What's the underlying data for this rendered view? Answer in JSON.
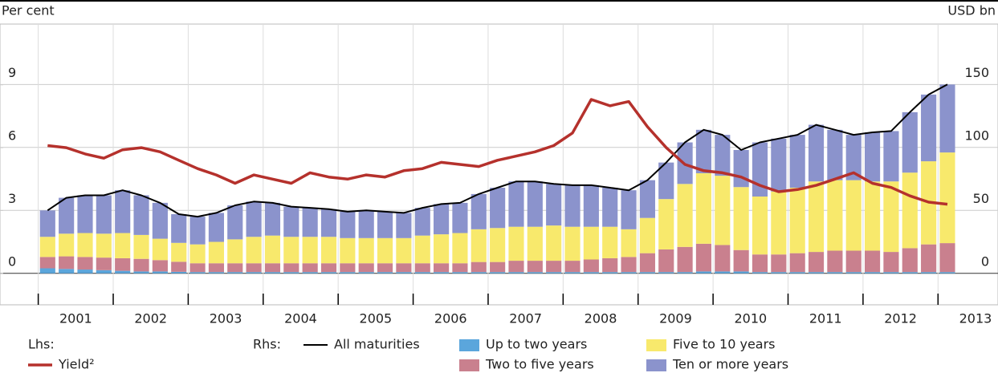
{
  "chart_data": {
    "type": "bar",
    "stacked": true,
    "left_unit": "Per cent",
    "right_unit": "USD bn",
    "lhs_label": "Lhs:",
    "rhs_label": "Rhs:",
    "x": [
      2001.125,
      2001.375,
      2001.625,
      2001.875,
      2002.125,
      2002.375,
      2002.625,
      2002.875,
      2003.125,
      2003.375,
      2003.625,
      2003.875,
      2004.125,
      2004.375,
      2004.625,
      2004.875,
      2005.125,
      2005.375,
      2005.625,
      2005.875,
      2006.125,
      2006.375,
      2006.625,
      2006.875,
      2007.125,
      2007.375,
      2007.625,
      2007.875,
      2008.125,
      2008.375,
      2008.625,
      2008.875,
      2009.125,
      2009.375,
      2009.625,
      2009.875,
      2010.125,
      2010.375,
      2010.625,
      2010.875,
      2011.125,
      2011.375,
      2011.625,
      2011.875,
      2012.125,
      2012.375,
      2012.625,
      2012.875,
      2013.125
    ],
    "xlim": [
      2000.49,
      2013.8
    ],
    "xticks": [
      2001,
      2002,
      2003,
      2004,
      2005,
      2006,
      2007,
      2008,
      2009,
      2010,
      2011,
      2012,
      2013
    ],
    "ylim": [
      -1.5,
      11.9
    ],
    "yticks": [
      0,
      3,
      6,
      9
    ],
    "y2lim": [
      -25,
      198
    ],
    "y2ticks": [
      0,
      50,
      100,
      150
    ],
    "grid": true,
    "series": [
      {
        "name": "All maturities",
        "type": "line",
        "axis": "y2",
        "color": "#000000",
        "values": [
          50,
          60,
          62,
          62,
          66,
          62,
          56,
          47,
          45,
          48,
          54,
          57,
          56,
          53,
          52,
          51,
          49,
          50,
          49,
          48,
          52,
          55,
          56,
          63,
          68,
          73,
          73,
          71,
          70,
          70,
          68,
          66,
          74,
          88,
          104,
          114,
          110,
          98,
          104,
          107,
          110,
          118,
          114,
          110,
          112,
          113,
          128,
          142,
          150
        ]
      },
      {
        "name": "Up to two years",
        "axis": "y2",
        "color": "#5ba6dc",
        "values": [
          4,
          3.5,
          3,
          2.5,
          2,
          1.5,
          1.5,
          1.2,
          1,
          1,
          1,
          1,
          1,
          1,
          1,
          1,
          1,
          1,
          1,
          1,
          1,
          1,
          1,
          1,
          1,
          1,
          1,
          1,
          1,
          1,
          1,
          1,
          1,
          1,
          1,
          1.5,
          1.5,
          1.5,
          1,
          1,
          1,
          1,
          1,
          1,
          1,
          1,
          1,
          1,
          1
        ]
      },
      {
        "name": "Two to five years",
        "axis": "y2",
        "color": "#c9808e",
        "values": [
          9,
          10,
          10,
          10,
          10,
          10,
          9,
          8,
          7,
          7,
          7,
          7,
          7,
          7,
          7,
          7,
          7,
          7,
          7,
          7,
          7,
          7,
          7,
          8,
          8,
          9,
          9,
          9,
          9,
          10,
          11,
          12,
          15,
          18,
          20,
          22,
          21,
          17,
          14,
          14,
          15,
          16,
          17,
          17,
          17,
          16,
          19,
          22,
          23
        ]
      },
      {
        "name": "Five to 10 years",
        "axis": "y2",
        "color": "#f8e96c",
        "values": [
          16,
          18,
          19,
          19,
          20,
          19,
          17,
          15,
          15,
          17,
          19,
          21,
          22,
          21,
          21,
          21,
          20,
          20,
          20,
          20,
          22,
          23,
          24,
          26,
          27,
          27,
          27,
          28,
          27,
          26,
          25,
          22,
          28,
          40,
          50,
          56,
          55,
          50,
          46,
          50,
          52,
          56,
          56,
          56,
          55,
          56,
          60,
          66,
          72
        ]
      },
      {
        "name": "Ten or more years",
        "axis": "y2",
        "color": "#8b93cc",
        "values": [
          21,
          28.5,
          30,
          30.5,
          34,
          31.5,
          28.5,
          22.8,
          22,
          23,
          27,
          28,
          26,
          24,
          23,
          22,
          21,
          22,
          21,
          20,
          22,
          24,
          24,
          28,
          32,
          36,
          36,
          33,
          33,
          33,
          31,
          31,
          30,
          29,
          33,
          34.5,
          32.5,
          29.5,
          43,
          42,
          42,
          45,
          40,
          36,
          39,
          40,
          48,
          53,
          54
        ]
      },
      {
        "name": "Yield²",
        "type": "line",
        "axis": "y",
        "color": "#b5312c",
        "values": [
          6.1,
          6.0,
          5.7,
          5.5,
          5.9,
          6.0,
          5.8,
          5.4,
          5.0,
          4.7,
          4.3,
          4.7,
          4.5,
          4.3,
          4.8,
          4.6,
          4.5,
          4.7,
          4.6,
          4.9,
          5.0,
          5.3,
          5.2,
          5.1,
          5.4,
          5.6,
          5.8,
          6.1,
          6.7,
          8.3,
          8.0,
          8.2,
          7.0,
          6.0,
          5.2,
          4.9,
          4.8,
          4.6,
          4.2,
          3.9,
          4.0,
          4.2,
          4.5,
          4.8,
          4.3,
          4.1,
          3.7,
          3.4,
          3.3
        ]
      }
    ]
  }
}
